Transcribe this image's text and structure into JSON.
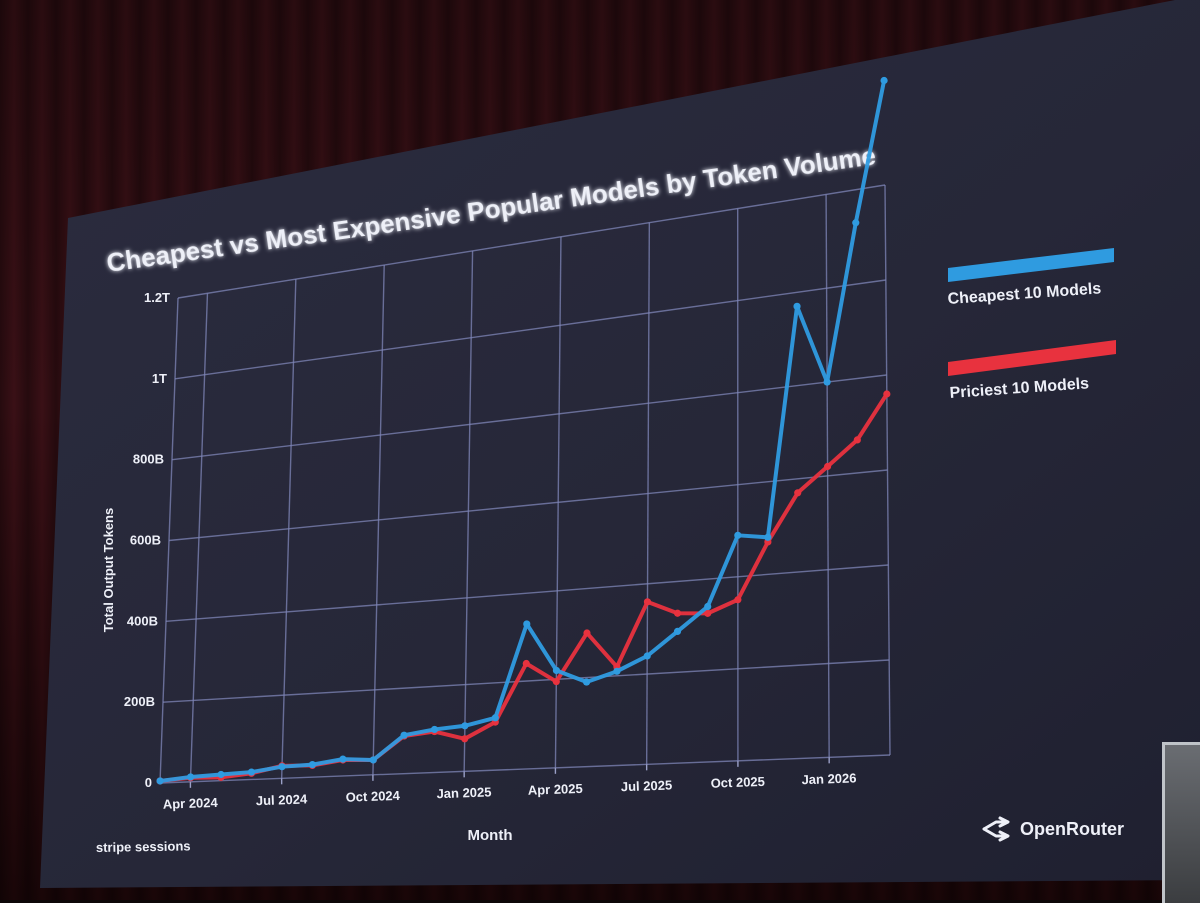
{
  "chart_data": {
    "type": "line",
    "title": "Cheapest vs Most Expensive Popular Models by Token Volume",
    "xlabel": "Month",
    "ylabel": "Total Output Tokens",
    "ylim": [
      0,
      1200
    ],
    "y_unit": "billions of tokens",
    "y_ticks": [
      {
        "value": 0,
        "label": "0"
      },
      {
        "value": 200,
        "label": "200B"
      },
      {
        "value": 400,
        "label": "400B"
      },
      {
        "value": 600,
        "label": "600B"
      },
      {
        "value": 800,
        "label": "800B"
      },
      {
        "value": 1000,
        "label": "1T"
      },
      {
        "value": 1200,
        "label": "1.2T"
      }
    ],
    "x_ticks": [
      {
        "index": 1,
        "label": "Apr 2024"
      },
      {
        "index": 4,
        "label": "Jul 2024"
      },
      {
        "index": 7,
        "label": "Oct 2024"
      },
      {
        "index": 10,
        "label": "Jan 2025"
      },
      {
        "index": 13,
        "label": "Apr 2025"
      },
      {
        "index": 16,
        "label": "Jul 2025"
      },
      {
        "index": 19,
        "label": "Oct 2025"
      },
      {
        "index": 22,
        "label": "Jan 2026"
      }
    ],
    "categories": [
      "Mar 2024",
      "Apr 2024",
      "May 2024",
      "Jun 2024",
      "Jul 2024",
      "Aug 2024",
      "Sep 2024",
      "Oct 2024",
      "Nov 2024",
      "Dec 2024",
      "Jan 2025",
      "Feb 2025",
      "Mar 2025",
      "Apr 2025",
      "May 2025",
      "Jun 2025",
      "Jul 2025",
      "Aug 2025",
      "Sep 2025",
      "Oct 2025",
      "Nov 2025",
      "Dec 2025",
      "Jan 2026",
      "Feb 2026",
      "Mar 2026"
    ],
    "grid": true,
    "legend_position": "right",
    "series": [
      {
        "name": "Cheapest 10 Models",
        "color": "#2f9be0",
        "values": [
          5,
          12,
          15,
          18,
          28,
          30,
          40,
          35,
          90,
          100,
          105,
          120,
          330,
          220,
          190,
          210,
          240,
          290,
          340,
          490,
          480,
          970,
          800,
          1130,
          1420
        ]
      },
      {
        "name": "Priciest 10 Models",
        "color": "#e8323e",
        "values": [
          5,
          10,
          8,
          15,
          30,
          28,
          38,
          35,
          88,
          95,
          75,
          110,
          240,
          195,
          300,
          220,
          360,
          330,
          325,
          350,
          470,
          570,
          620,
          670,
          760
        ]
      }
    ]
  },
  "branding": {
    "event": "stripe sessions",
    "company": "OpenRouter"
  }
}
